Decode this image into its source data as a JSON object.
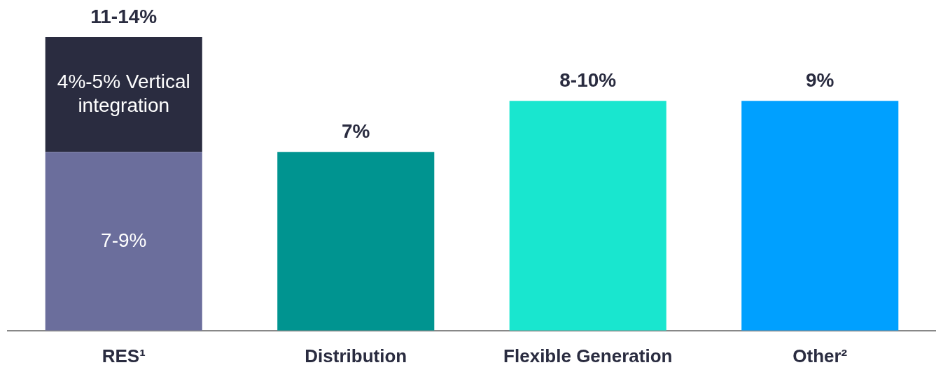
{
  "chart_data": {
    "type": "bar",
    "stacked": true,
    "categories": [
      "RES¹",
      "Distribution",
      "Flexible Generation",
      "Other²"
    ],
    "series": [
      {
        "colors": [
          "#6b6e9c",
          "#009490",
          "#19e6cf",
          "#00a0ff"
        ],
        "values": [
          7,
          7,
          9,
          9
        ],
        "value_labels": [
          "7-9%",
          null,
          null,
          null
        ]
      },
      {
        "color": "#2a2c40",
        "values": [
          4.5,
          null,
          null,
          null
        ],
        "value_labels": [
          "4%-5% Vertical integration",
          null,
          null,
          null
        ]
      }
    ],
    "totals": [
      "11-14%",
      "7%",
      "8-10%",
      "9%"
    ],
    "ylim": [
      0,
      11.5
    ],
    "tick_labels": "x",
    "legend": false
  }
}
